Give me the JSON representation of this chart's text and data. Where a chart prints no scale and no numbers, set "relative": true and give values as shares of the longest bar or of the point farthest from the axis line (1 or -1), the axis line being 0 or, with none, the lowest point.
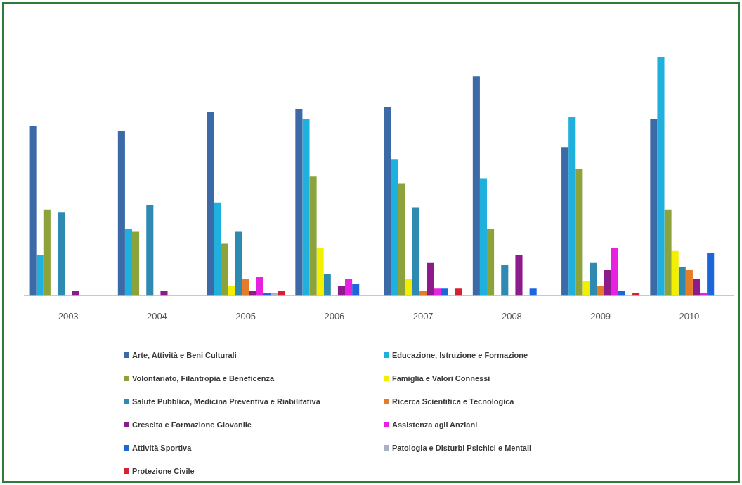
{
  "chart_data": {
    "type": "bar",
    "relative": true,
    "legend": "bottom",
    "categories": [
      "2003",
      "2004",
      "2005",
      "2006",
      "2007",
      "2008",
      "2009",
      "2010"
    ],
    "series": [
      {
        "name": "Arte, Attività e Beni Culturali",
        "color": "#3b6aa6",
        "values": [
          0.71,
          0.69,
          0.77,
          0.78,
          0.79,
          0.92,
          0.62,
          0.74
        ]
      },
      {
        "name": "Educazione, Istruzione e Formazione",
        "color": "#1fb0de",
        "values": [
          0.17,
          0.28,
          0.39,
          0.74,
          0.57,
          0.49,
          0.75,
          1
        ]
      },
      {
        "name": "Volontariato, Filantropia e Beneficenza",
        "color": "#8ca33c",
        "values": [
          0.36,
          0.27,
          0.22,
          0.5,
          0.47,
          0.28,
          0.53,
          0.36
        ]
      },
      {
        "name": "Famiglia e Valori Connessi",
        "color": "#f2f000",
        "values": [
          0,
          0,
          0.04,
          0.2,
          0.07,
          0,
          0.06,
          0.19
        ]
      },
      {
        "name": "Salute Pubblica, Medicina Preventiva e Riabilitativa",
        "color": "#2e8ab0",
        "values": [
          0.35,
          0.38,
          0.27,
          0.09,
          0.37,
          0.13,
          0.14,
          0.12
        ]
      },
      {
        "name": "Ricerca Scientifica e Tecnologica",
        "color": "#e57c2a",
        "values": [
          0,
          0,
          0.07,
          0,
          0.02,
          0,
          0.04,
          0.11
        ]
      },
      {
        "name": "Crescita e Formazione Giovanile",
        "color": "#8c1c8c",
        "values": [
          0.02,
          0.02,
          0.02,
          0.04,
          0.14,
          0.17,
          0.11,
          0.07
        ]
      },
      {
        "name": "Assistenza agli Anziani",
        "color": "#e622e0",
        "values": [
          0,
          0,
          0.08,
          0.07,
          0.03,
          0,
          0.2,
          0.01
        ]
      },
      {
        "name": "Attività Sportiva",
        "color": "#1c66dc",
        "values": [
          0,
          0,
          0.01,
          0.05,
          0.03,
          0.03,
          0.02,
          0.18
        ]
      },
      {
        "name": "Patologia e Disturbi Psichici e Mentali",
        "color": "#a9b2c4",
        "values": [
          0,
          0,
          0.01,
          0,
          0,
          0,
          0,
          0
        ]
      },
      {
        "name": "Protezione Civile",
        "color": "#d42232",
        "values": [
          0,
          0,
          0.02,
          0,
          0.03,
          0,
          0.01,
          0
        ]
      }
    ]
  }
}
